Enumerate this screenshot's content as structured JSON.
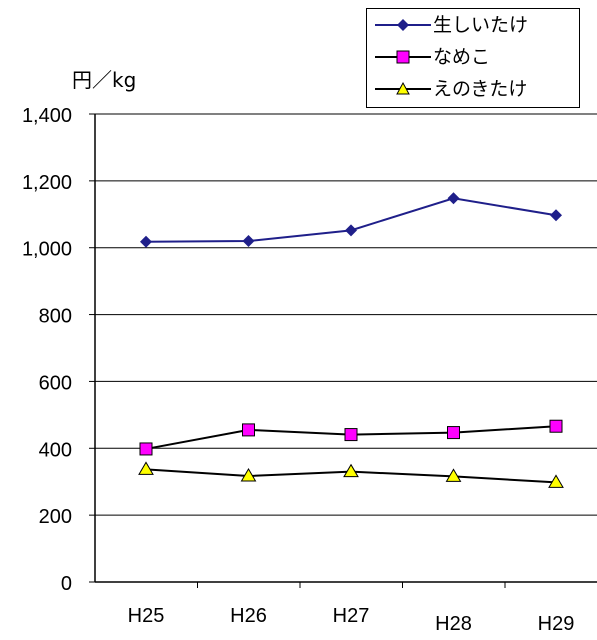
{
  "chart_data": {
    "type": "line",
    "categories": [
      "H25",
      "H26",
      "H27",
      "H28",
      "H29"
    ],
    "series": [
      {
        "name": "生しいたけ",
        "values": [
          1018,
          1020,
          1052,
          1148,
          1097
        ],
        "color": "#1f1f8a",
        "marker": "diamond",
        "marker_color": "#1f1f8a"
      },
      {
        "name": "なめこ",
        "values": [
          398,
          455,
          441,
          447,
          466
        ],
        "color": "#000000",
        "marker": "square",
        "marker_color": "#ff00ff"
      },
      {
        "name": "えのきたけ",
        "values": [
          337,
          317,
          330,
          316,
          298
        ],
        "color": "#000000",
        "marker": "triangle",
        "marker_color": "#ffff00"
      }
    ],
    "ylim": [
      0,
      1400
    ],
    "yticks": [
      "0",
      "200",
      "400",
      "600",
      "800",
      "1,000",
      "1,200",
      "1,400"
    ],
    "ytick_values": [
      0,
      200,
      400,
      600,
      800,
      1000,
      1200,
      1400
    ],
    "unit_label": "円／kg",
    "grid": true,
    "legend_position": "top-right"
  }
}
